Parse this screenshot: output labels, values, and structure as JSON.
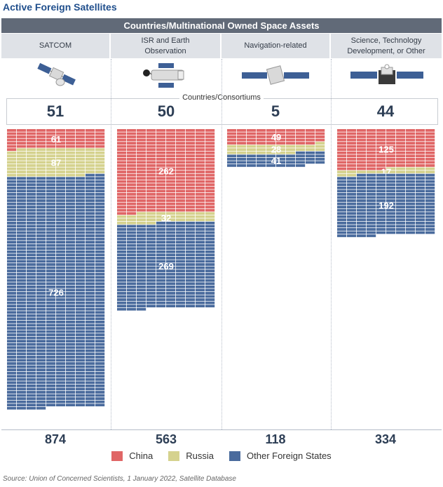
{
  "title": "Active Foreign Satellites",
  "banner": "Countries/Multinational Owned Space Assets",
  "countries_label": "Countries/Consortiums",
  "source": "Source: Union of Concerned Scientists, 1 January 2022, Satellite Database",
  "categories": [
    {
      "label": "SATCOM",
      "countries": "51",
      "total": "874",
      "icon": "comms-satellite-icon"
    },
    {
      "label": "ISR and Earth Observation",
      "countries": "50",
      "total": "563",
      "icon": "imaging-satellite-icon"
    },
    {
      "label": "Navigation-related",
      "countries": "5",
      "total": "118",
      "icon": "navigation-satellite-icon"
    },
    {
      "label": "Science, Technology Development, or Other",
      "countries": "44",
      "total": "334",
      "icon": "science-satellite-icon"
    }
  ],
  "legend": [
    {
      "name": "China",
      "color": "#e06666"
    },
    {
      "name": "Russia",
      "color": "#d5d28e"
    },
    {
      "name": "Other Foreign States",
      "color": "#4a6b9d"
    }
  ],
  "chart_data": {
    "type": "bar",
    "categories": [
      "SATCOM",
      "ISR and Earth Observation",
      "Navigation-related",
      "Science, Technology Development, or Other"
    ],
    "series": [
      {
        "name": "China",
        "values": [
          61,
          262,
          49,
          125
        ]
      },
      {
        "name": "Russia",
        "values": [
          87,
          32,
          28,
          17
        ]
      },
      {
        "name": "Other Foreign States",
        "values": [
          726,
          269,
          41,
          192
        ]
      }
    ],
    "totals": [
      874,
      563,
      118,
      334
    ],
    "countries": [
      51,
      50,
      5,
      44
    ],
    "stacked": true
  }
}
